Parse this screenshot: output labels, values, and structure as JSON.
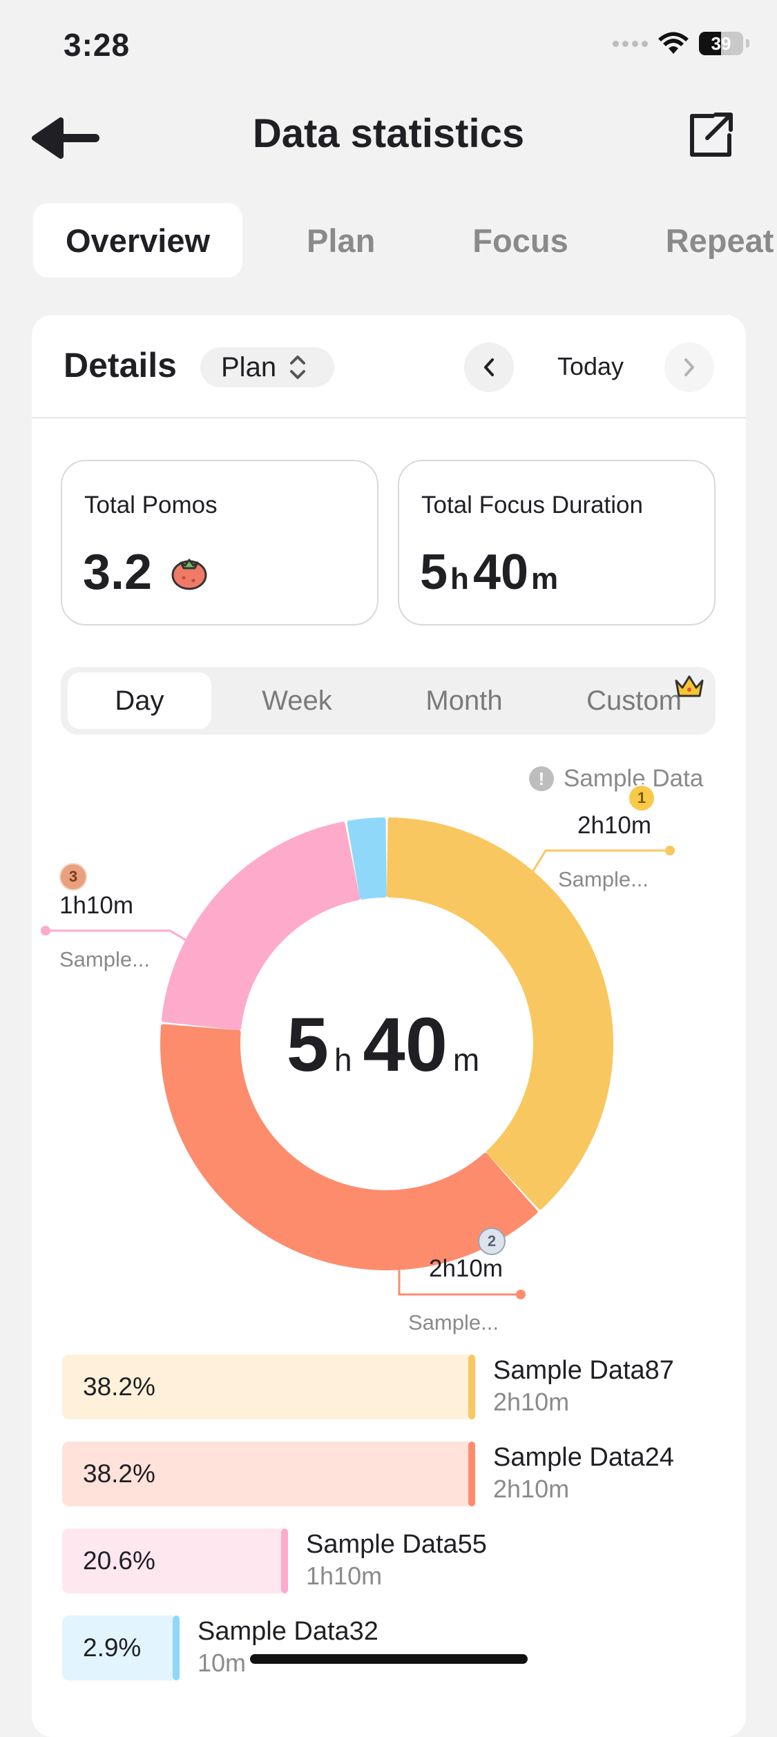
{
  "status_bar": {
    "time": "3:28",
    "battery": "39"
  },
  "nav": {
    "title": "Data statistics"
  },
  "tabs": [
    "Overview",
    "Plan",
    "Focus",
    "Repeat"
  ],
  "details": {
    "title": "Details",
    "filter_value": "Plan",
    "date_label": "Today"
  },
  "stats": {
    "pomos_label": "Total Pomos",
    "pomos_value": "3.2",
    "duration_label": "Total Focus Duration",
    "duration_h": "5",
    "duration_h_unit": "h",
    "duration_m": "40",
    "duration_m_unit": "m"
  },
  "periods": [
    "Day",
    "Week",
    "Month",
    "Custom"
  ],
  "chart_note": "Sample Data",
  "chart_data": {
    "type": "pie",
    "center_h": "5",
    "center_h_unit": "h",
    "center_m": "40",
    "center_m_unit": "m",
    "slices": [
      {
        "name": "Sample Data87",
        "percent": 38.2,
        "duration": "2h10m",
        "color": "#f9c75f",
        "rank": "1",
        "short": "Sample..."
      },
      {
        "name": "Sample Data24",
        "percent": 38.2,
        "duration": "2h10m",
        "color": "#fd8c6d",
        "rank": "2",
        "short": "Sample..."
      },
      {
        "name": "Sample Data55",
        "percent": 20.6,
        "duration": "1h10m",
        "color": "#feaacb",
        "rank": "3",
        "short": "Sample..."
      },
      {
        "name": "Sample Data32",
        "percent": 2.9,
        "duration": "10m",
        "color": "#8fd8fa",
        "rank": "",
        "short": ""
      }
    ]
  },
  "legend": [
    {
      "pct": "38.2%",
      "name": "Sample Data87",
      "dur": "2h10m",
      "fill": 0.382,
      "bg": "#fff1d9",
      "edge": "#f9c75f"
    },
    {
      "pct": "38.2%",
      "name": "Sample Data24",
      "dur": "2h10m",
      "fill": 0.382,
      "bg": "#ffe2da",
      "edge": "#fd8c6d"
    },
    {
      "pct": "20.6%",
      "name": "Sample Data55",
      "dur": "1h10m",
      "fill": 0.206,
      "bg": "#ffe7ef",
      "edge": "#feaacb"
    },
    {
      "pct": "2.9%",
      "name": "Sample Data32",
      "dur": "10m",
      "fill": 0.029,
      "bg": "#e2f4fd",
      "edge": "#8fd8fa"
    }
  ]
}
